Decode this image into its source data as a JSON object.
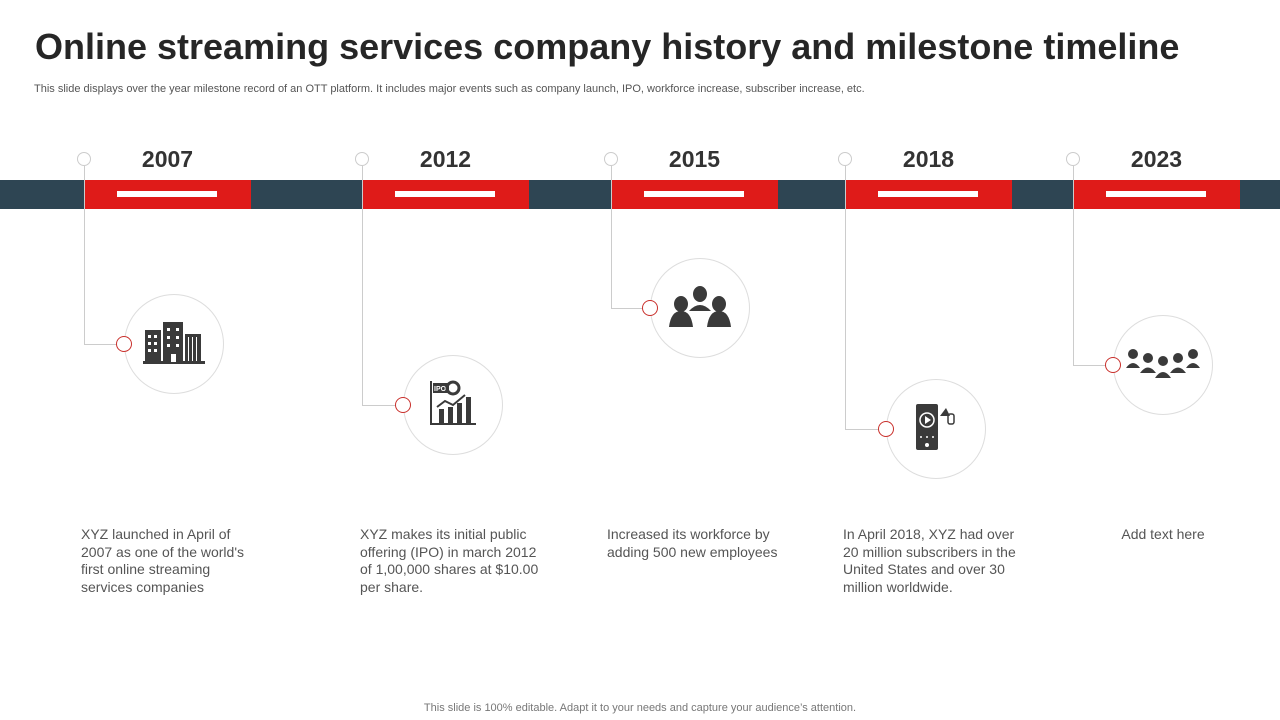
{
  "title": "Online streaming services company history and milestone timeline",
  "subtitle": "This slide displays over the year milestone record of an OTT platform. It includes major events such as company launch, IPO, workforce increase, subscriber increase, etc.",
  "colors": {
    "accent": "#df1b19",
    "bar": "#2e4553",
    "icon": "#3a3a3a"
  },
  "milestones": [
    {
      "year": "2007",
      "icon": "building-icon",
      "text": "XYZ launched in April of 2007 as one of the world's first online streaming services companies"
    },
    {
      "year": "2012",
      "icon": "ipo-chart-icon",
      "text": "XYZ makes its initial public offering (IPO) in march 2012 of 1,00,000 shares at $10.00 per share."
    },
    {
      "year": "2015",
      "icon": "team-icon",
      "text": "Increased its workforce by adding 500 new employees"
    },
    {
      "year": "2018",
      "icon": "mobile-streaming-icon",
      "text": "In April 2018, XYZ had over 20 million subscribers in the United States and over 30 million worldwide."
    },
    {
      "year": "2023",
      "icon": "crowd-icon",
      "text": "Add text here"
    }
  ],
  "ipo_label": "IPO",
  "footer": "This slide is 100% editable. Adapt it to your needs and capture your audience’s attention."
}
